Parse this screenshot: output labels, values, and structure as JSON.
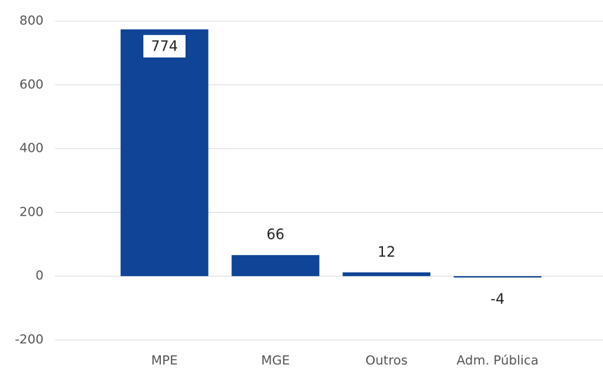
{
  "chart_data": {
    "type": "bar",
    "categories": [
      "MPE",
      "MGE",
      "Outros",
      "Adm. Pública"
    ],
    "values": [
      774,
      66,
      12,
      -4
    ],
    "color": "#0f4496",
    "ylim": [
      -200,
      800
    ],
    "yticks": [
      -200,
      0,
      200,
      400,
      600,
      800
    ],
    "grid": true
  }
}
